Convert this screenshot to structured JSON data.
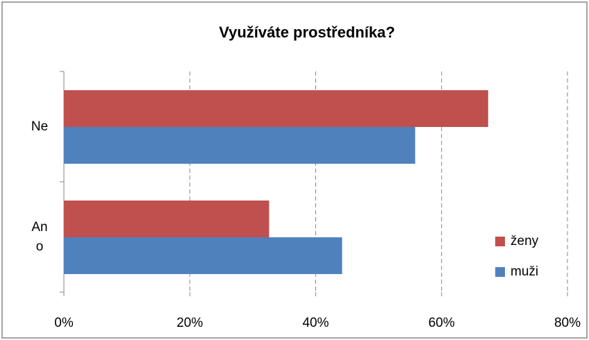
{
  "chart_data": {
    "type": "hbar",
    "title": "Využíváte prostředníka?",
    "categories": [
      "Ano",
      "Ne"
    ],
    "series": [
      {
        "name": "ženy",
        "color": "#c0504d",
        "values": [
          32.6,
          67.4
        ]
      },
      {
        "name": "muži",
        "color": "#4f81bd",
        "values": [
          44.2,
          55.8
        ]
      }
    ],
    "xlim": [
      0,
      80
    ],
    "xticks": [
      {
        "value": 0,
        "label": "0%"
      },
      {
        "value": 20,
        "label": "20%"
      },
      {
        "value": 40,
        "label": "40%"
      },
      {
        "value": 60,
        "label": "60%"
      },
      {
        "value": 80,
        "label": "80%"
      }
    ],
    "grid": true,
    "legend": "right"
  }
}
